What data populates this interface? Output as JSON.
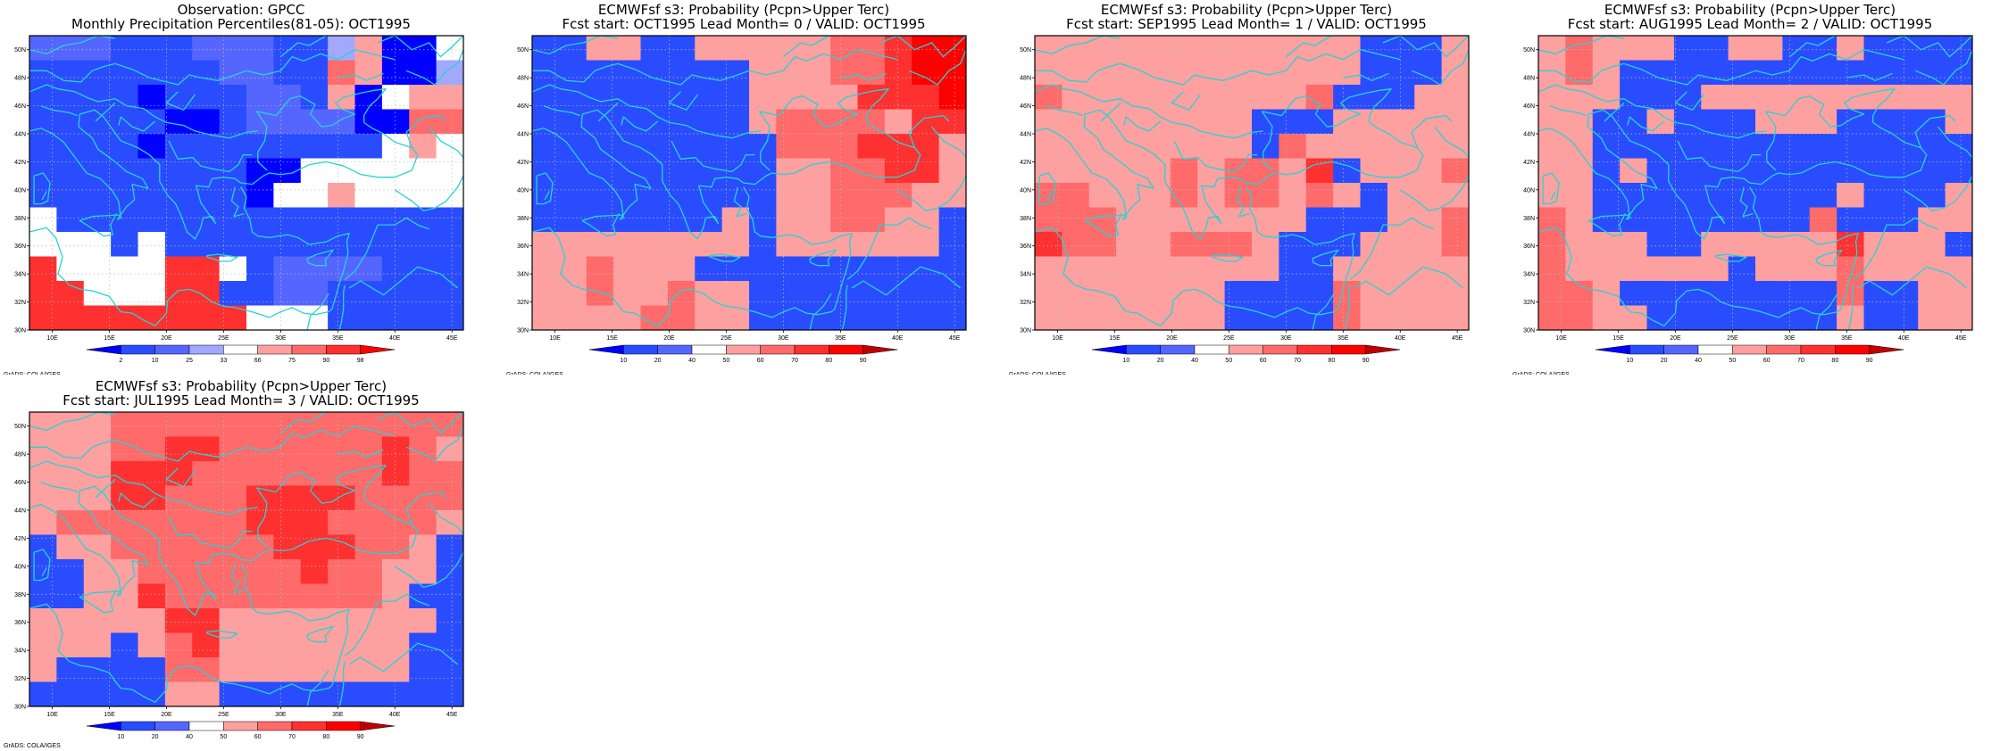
{
  "figure": {
    "colors": {
      "coast": "#27d3d3",
      "frame": "#000000",
      "grid": "#bdbdbd"
    },
    "credit": "GrADS: COLA/IGES",
    "lon_ticks": [
      "10E",
      "15E",
      "20E",
      "25E",
      "30E",
      "35E",
      "40E",
      "45E"
    ],
    "lat_ticks": [
      "30N",
      "32N",
      "34N",
      "36N",
      "38N",
      "40N",
      "42N",
      "44N",
      "46N",
      "48N",
      "50N"
    ],
    "map_extent": {
      "lon": [
        8,
        46
      ],
      "lat": [
        30,
        51
      ]
    }
  },
  "panels": [
    {
      "title1": "Observation: GPCC",
      "title2": "Monthly Precipitation Percentiles(81-05): OCT1995",
      "legend": {
        "labels": [
          "2",
          "10",
          "25",
          "33",
          "66",
          "75",
          "90",
          "98"
        ],
        "colors": [
          "#0000ff",
          "#2a4cff",
          "#5566ff",
          "#a2a8ff",
          "#ffffff",
          "#ffa0a0",
          "#ff6a6a",
          "#ff3030",
          "#ff0000"
        ]
      },
      "grid": [
        "CCCBBBCCCBBDFAAE",
        "BBBBBBBCCBBGFAAD",
        "BBBBABBBCCBFAEFF",
        "BBBBBAABCCCCAAGG",
        "BBBBABBBBBBBBEFE",
        "BBBBBBBBAAEEEEEE",
        "BBBBBBBBAEEFEEEE",
        "EBBBBBBBBBBBBBBB",
        "EEEBEBBBBBBBBBBB",
        "HEEEEHHEBCCCCBBB",
        "HHEEEHHBBCCBBBBB",
        "HHHHHHHHEEEBBBBB"
      ]
    },
    {
      "title1": "ECMWFsf s3: Probability (Pcpn>Upper Terc)",
      "title2": "Fcst start: OCT1995  Lead Month= 0 / VALID: OCT1995",
      "legend": {
        "labels": [
          "10",
          "20",
          "40",
          "50",
          "60",
          "70",
          "80",
          "90"
        ],
        "colors": [
          "#0000ff",
          "#2a4cff",
          "#5566ff",
          "#ffffff",
          "#ffa0a0",
          "#ff6a6a",
          "#ff3030",
          "#ff0000",
          "#c00000"
        ]
      },
      "grid": [
        "BBEEBBEEEEEFFGHH",
        "BBBBBBBBEEEFFGHH",
        "BBBBBBBBEEEEGGGH",
        "BBBBBBBBEFFFFEGG",
        "BBBBBBBBBFFFGGGE",
        "BBBBBBBBBEEFFGGE",
        "BBBBBBBBBEEFFFEE",
        "BBBBBBBEBEEFFEEB",
        "EEEEEEEEBEEEEEEB",
        "EEFEEEBBBBBBBBBB",
        "EEFEEFEEBBBBBBBB",
        "EEEEFFEEBBBBBBBB"
      ]
    },
    {
      "title1": "ECMWFsf s3: Probability (Pcpn>Upper Terc)",
      "title2": "Fcst start: SEP1995  Lead Month= 1 / VALID: OCT1995",
      "legend": {
        "labels": [
          "10",
          "20",
          "40",
          "50",
          "60",
          "70",
          "80",
          "90"
        ],
        "colors": [
          "#0000ff",
          "#2a4cff",
          "#5566ff",
          "#ffffff",
          "#ffa0a0",
          "#ff6a6a",
          "#ff3030",
          "#ff0000",
          "#c00000"
        ]
      },
      "grid": [
        "EEEEEEEEEEEEBBBE",
        "EEEEEEEEEEEEBBBE",
        "FEEEEEEEEEFBBBEE",
        "EEEEEEEEBBBEEEEE",
        "EEEEEEEEBFEEEEEE",
        "EEEEEFEFFEGBEEEF",
        "FFEEEFEFFEFEBEEE",
        "FFFEEEEEEEBBBEEF",
        "GFFEEFFFEBBBEEEF",
        "EEEEEEEEEBBEEEEE",
        "EEEEEEEBBBBFEEEE",
        "EEEEEEEBBBBFEEEE"
      ]
    },
    {
      "title1": "ECMWFsf s3: Probability (Pcpn>Upper Terc)",
      "title2": "Fcst start: AUG1995  Lead Month= 2 / VALID: OCT1995",
      "legend": {
        "labels": [
          "10",
          "20",
          "40",
          "50",
          "60",
          "70",
          "80",
          "90"
        ],
        "colors": [
          "#0000ff",
          "#2a4cff",
          "#5566ff",
          "#ffffff",
          "#ffa0a0",
          "#ff6a6a",
          "#ff3030",
          "#ff0000",
          "#c00000"
        ]
      },
      "grid": [
        "EFEEEBBEEBBEBBBB",
        "EFEBBBBBBBBBBBBB",
        "EEEBBBEEEEEEEEEE",
        "EEBBEBBBEEEBBBBE",
        "EEBBBBBBBBBBBBBB",
        "EEBEBBBBBBBBBBBB",
        "EEBBBBBBBBBEBBBE",
        "FEBBBBBBBBFBBBEE",
        "FEEEBBEEEEEGEEEB",
        "FEEEEEEBEEEFEEEE",
        "FFEBBBBBBBBFBBEE",
        "FFEEBBBBBBBEBBEE"
      ]
    },
    {
      "title1": "ECMWFsf s3: Probability (Pcpn>Upper Terc)",
      "title2": "Fcst start: JUL1995  Lead Month= 3 / VALID: OCT1995",
      "legend": {
        "labels": [
          "10",
          "20",
          "40",
          "50",
          "60",
          "70",
          "80",
          "90"
        ],
        "colors": [
          "#0000ff",
          "#2a4cff",
          "#5566ff",
          "#ffffff",
          "#ffa0a0",
          "#ff6a6a",
          "#ff3030",
          "#ff0000",
          "#c00000"
        ]
      },
      "grid": [
        "EEEFFFFFFFFFFFFF",
        "EEEFFGGFFFFFFGFE",
        "EEEGGGFFFFFFFGFF",
        "EEEGGFFFGGGGFFFF",
        "EFFFFFFFGGGFFFFE",
        "BEEFFFFFFGGGFFEB",
        "BBEEFFFFFFGFFEEB",
        "BBEEGFFFFFFFFEBB",
        "EEEEEGGEEEEEEEEB",
        "EEEBEFGEEEEEEEBB",
        "EBBBBFFEEEEEEEBB",
        "BBBBBEEBBBBBBBBB"
      ]
    }
  ]
}
